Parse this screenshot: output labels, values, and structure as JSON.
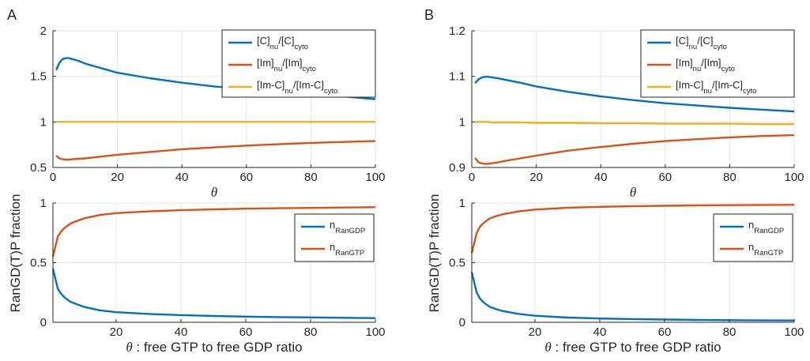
{
  "colors": {
    "blue": "#0072BD",
    "orange": "#D95319",
    "yellow": "#EDB120",
    "grid": "#e6e6e6",
    "axis": "#262626"
  },
  "chart_data": [
    {
      "panel": "A",
      "position": "top",
      "type": "line",
      "xlabel": "θ",
      "ylabel": "",
      "xlim": [
        0,
        100
      ],
      "ylim": [
        0.5,
        2
      ],
      "xticks": [
        0,
        20,
        40,
        60,
        80,
        100
      ],
      "yticks": [
        0.5,
        1,
        1.5,
        2
      ],
      "ytick_labels": [
        "0.5",
        "1",
        "1.5",
        "2"
      ],
      "grid": true,
      "legend_position": "top-right",
      "x": [
        1,
        2,
        3,
        4,
        5,
        6,
        8,
        10,
        15,
        20,
        30,
        40,
        50,
        60,
        70,
        80,
        90,
        100
      ],
      "series": [
        {
          "name": "[C]nu/[C]cyto",
          "legend_parts": [
            "[C]",
            "nu",
            "/[C]",
            "cyto"
          ],
          "color_key": "blue",
          "values": [
            1.57,
            1.65,
            1.69,
            1.7,
            1.7,
            1.69,
            1.67,
            1.64,
            1.59,
            1.54,
            1.48,
            1.43,
            1.39,
            1.36,
            1.33,
            1.3,
            1.28,
            1.25
          ]
        },
        {
          "name": "[Im]nu/[Im]cyto",
          "legend_parts": [
            "[Im]",
            "nu",
            "/[Im]",
            "cyto"
          ],
          "color_key": "orange",
          "values": [
            0.63,
            0.6,
            0.59,
            0.585,
            0.585,
            0.59,
            0.595,
            0.6,
            0.62,
            0.64,
            0.67,
            0.7,
            0.72,
            0.74,
            0.755,
            0.77,
            0.78,
            0.79
          ]
        },
        {
          "name": "[Im-C]nu/[Im-C]cyto",
          "legend_parts": [
            "[Im-C]",
            "nu",
            "/[Im-C]",
            "cyto"
          ],
          "color_key": "yellow",
          "values": [
            1,
            1,
            1,
            1,
            1,
            1,
            1,
            1,
            1,
            1,
            1,
            1,
            1,
            1,
            1,
            1,
            1,
            1
          ]
        }
      ]
    },
    {
      "panel": "B",
      "position": "top",
      "type": "line",
      "xlabel": "θ",
      "ylabel": "",
      "xlim": [
        0,
        100
      ],
      "ylim": [
        0.9,
        1.2
      ],
      "xticks": [
        0,
        20,
        40,
        60,
        80,
        100
      ],
      "yticks": [
        0.9,
        1.0,
        1.1,
        1.2
      ],
      "ytick_labels": [
        "0.9",
        "1",
        "1.1",
        "1.2"
      ],
      "grid": true,
      "legend_position": "top-right",
      "x": [
        1,
        2,
        3,
        4,
        5,
        6,
        8,
        10,
        15,
        20,
        30,
        40,
        50,
        60,
        70,
        80,
        90,
        100
      ],
      "series": [
        {
          "name": "[C]nu/[C]cyto",
          "legend_parts": [
            "[C]",
            "nu",
            "/[C]",
            "cyto"
          ],
          "color_key": "blue",
          "values": [
            1.085,
            1.093,
            1.097,
            1.099,
            1.099,
            1.098,
            1.096,
            1.093,
            1.086,
            1.078,
            1.066,
            1.056,
            1.048,
            1.041,
            1.036,
            1.031,
            1.027,
            1.023
          ]
        },
        {
          "name": "[Im]nu/[Im]cyto",
          "legend_parts": [
            "[Im]",
            "nu",
            "/[Im]",
            "cyto"
          ],
          "color_key": "orange",
          "values": [
            0.921,
            0.912,
            0.909,
            0.908,
            0.908,
            0.909,
            0.911,
            0.914,
            0.92,
            0.926,
            0.937,
            0.945,
            0.952,
            0.958,
            0.962,
            0.966,
            0.969,
            0.971
          ]
        },
        {
          "name": "[Im-C]nu/[Im-C]cyto",
          "legend_parts": [
            "[Im-C]",
            "nu",
            "/[Im-C]",
            "cyto"
          ],
          "color_key": "yellow",
          "values": [
            1.0,
            1.0,
            1.0,
            1.0,
            1.0,
            0.999,
            0.999,
            0.999,
            0.999,
            0.998,
            0.998,
            0.997,
            0.997,
            0.996,
            0.996,
            0.996,
            0.995,
            0.995
          ]
        }
      ]
    },
    {
      "panel": "A",
      "position": "bottom",
      "type": "line",
      "xlabel": "θ : free GTP to free GDP ratio",
      "ylabel": "RanGD(T)P fraction",
      "xlim": [
        0.5,
        100
      ],
      "ylim": [
        0,
        1
      ],
      "xticks": [
        20,
        40,
        60,
        80,
        100
      ],
      "yticks": [
        0,
        0.5,
        1
      ],
      "ytick_labels": [
        "0",
        "0.5",
        "1"
      ],
      "grid": true,
      "legend_position": "right",
      "x": [
        0.5,
        2,
        3,
        4,
        5,
        6,
        8,
        10,
        15,
        20,
        30,
        40,
        50,
        60,
        70,
        80,
        90,
        100
      ],
      "series": [
        {
          "name": "nRanGDP",
          "legend_parts": [
            "n",
            "RanGDP"
          ],
          "color_key": "blue",
          "values": [
            0.45,
            0.28,
            0.24,
            0.21,
            0.19,
            0.17,
            0.15,
            0.13,
            0.1,
            0.085,
            0.07,
            0.06,
            0.053,
            0.048,
            0.044,
            0.041,
            0.038,
            0.035
          ]
        },
        {
          "name": "nRanGTP",
          "legend_parts": [
            "n",
            "RanGTP"
          ],
          "color_key": "orange",
          "values": [
            0.55,
            0.72,
            0.76,
            0.79,
            0.81,
            0.83,
            0.85,
            0.87,
            0.9,
            0.915,
            0.93,
            0.94,
            0.947,
            0.952,
            0.956,
            0.959,
            0.962,
            0.965
          ]
        }
      ]
    },
    {
      "panel": "B",
      "position": "bottom",
      "type": "line",
      "xlabel": "θ : free GTP to free GDP ratio",
      "ylabel": "RanGD(T)P fraction",
      "xlim": [
        0.5,
        100
      ],
      "ylim": [
        0,
        1
      ],
      "xticks": [
        20,
        40,
        60,
        80,
        100
      ],
      "yticks": [
        0,
        0.5,
        1
      ],
      "ytick_labels": [
        "0",
        "0.5",
        "1"
      ],
      "grid": true,
      "legend_position": "right",
      "x": [
        0.5,
        2,
        3,
        4,
        5,
        6,
        8,
        10,
        15,
        20,
        30,
        40,
        50,
        60,
        70,
        80,
        90,
        100
      ],
      "series": [
        {
          "name": "nRanGDP",
          "legend_parts": [
            "n",
            "RanGDP"
          ],
          "color_key": "blue",
          "values": [
            0.42,
            0.25,
            0.2,
            0.17,
            0.15,
            0.13,
            0.11,
            0.095,
            0.07,
            0.055,
            0.04,
            0.032,
            0.027,
            0.023,
            0.02,
            0.018,
            0.016,
            0.015
          ]
        },
        {
          "name": "nRanGTP",
          "legend_parts": [
            "n",
            "RanGTP"
          ],
          "color_key": "orange",
          "values": [
            0.58,
            0.75,
            0.8,
            0.83,
            0.85,
            0.87,
            0.89,
            0.905,
            0.93,
            0.945,
            0.96,
            0.968,
            0.973,
            0.977,
            0.98,
            0.982,
            0.984,
            0.985
          ]
        }
      ]
    }
  ]
}
